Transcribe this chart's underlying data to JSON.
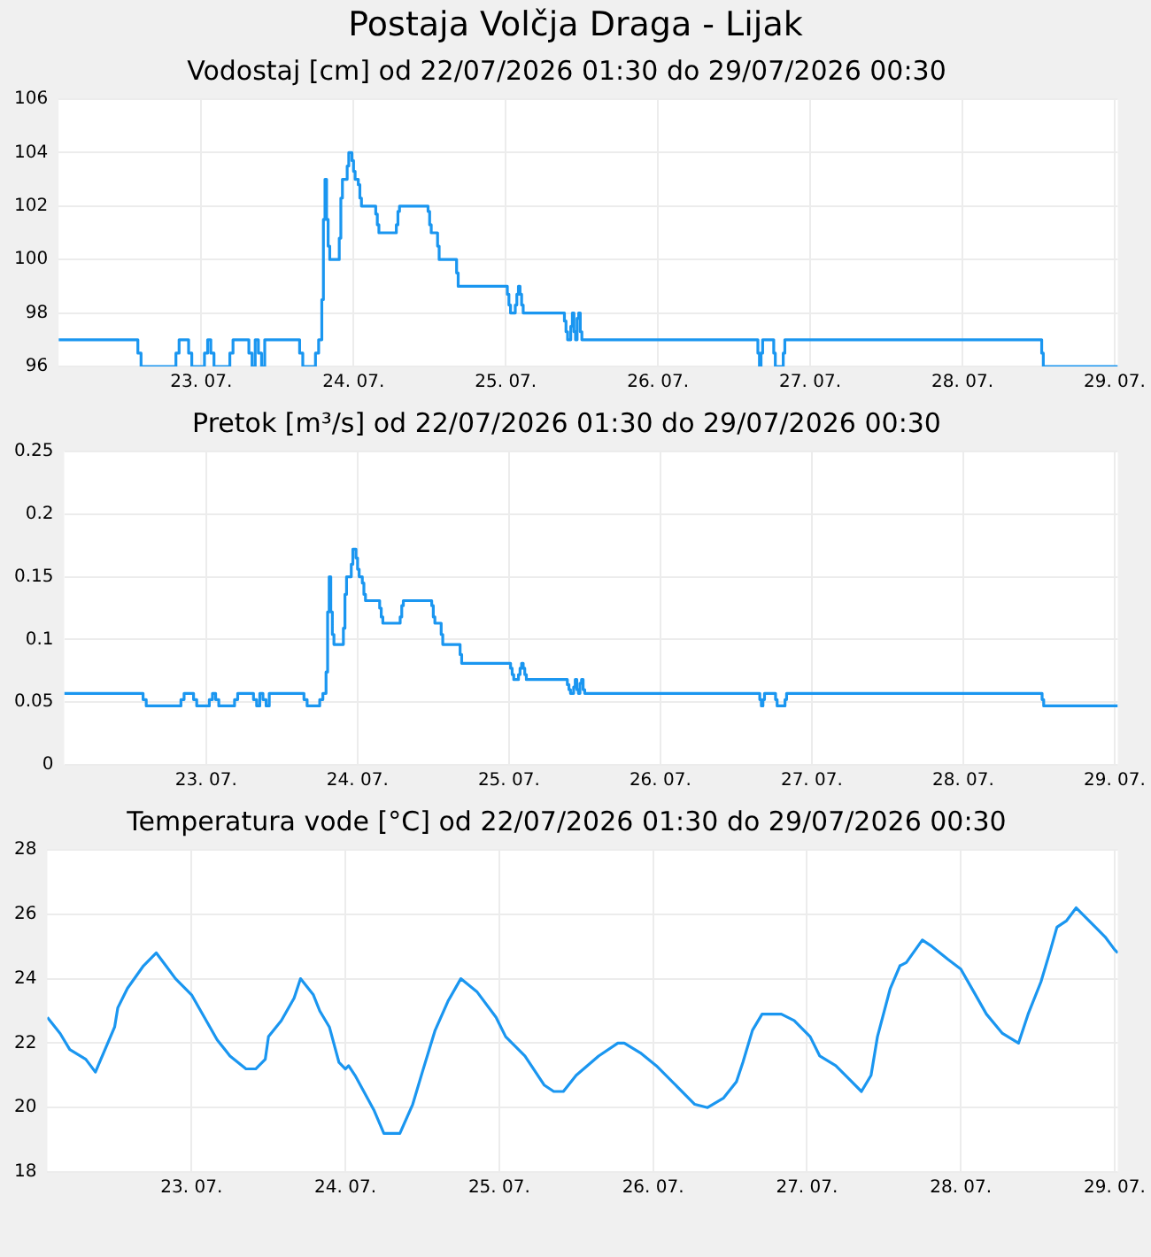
{
  "chart_data": [
    {
      "type": "step",
      "title": "Postaja Volčja Draga - Lijak",
      "subtitle": "Vodostaj [cm] od 22/07/2026 01:30 do 29/07/2026 00:30",
      "color": "#1a96f0",
      "grid": true,
      "x": [
        "2026-07-22T01:30",
        "2026-07-22T14:00",
        "2026-07-22T14:30",
        "2026-07-22T20:00",
        "2026-07-22T20:30",
        "2026-07-22T22:00",
        "2026-07-22T22:30",
        "2026-07-23T00:30",
        "2026-07-23T01:00",
        "2026-07-23T01:30",
        "2026-07-23T02:00",
        "2026-07-23T04:30",
        "2026-07-23T05:00",
        "2026-07-23T07:30",
        "2026-07-23T08:00",
        "2026-07-23T08:30",
        "2026-07-23T09:00",
        "2026-07-23T09:30",
        "2026-07-23T10:00",
        "2026-07-23T15:30",
        "2026-07-23T16:00",
        "2026-07-23T18:00",
        "2026-07-23T18:30",
        "2026-07-23T19:00",
        "2026-07-23T19:15",
        "2026-07-23T19:30",
        "2026-07-23T19:45",
        "2026-07-23T20:00",
        "2026-07-23T20:15",
        "2026-07-23T21:45",
        "2026-07-23T22:00",
        "2026-07-23T22:15",
        "2026-07-23T23:00",
        "2026-07-23T23:15",
        "2026-07-23T23:45",
        "2026-07-24T00:00",
        "2026-07-24T00:15",
        "2026-07-24T00:45",
        "2026-07-24T01:00",
        "2026-07-24T01:15",
        "2026-07-24T03:30",
        "2026-07-24T03:45",
        "2026-07-24T04:00",
        "2026-07-24T06:45",
        "2026-07-24T07:00",
        "2026-07-24T07:15",
        "2026-07-24T11:45",
        "2026-07-24T12:00",
        "2026-07-24T12:15",
        "2026-07-24T13:15",
        "2026-07-24T13:30",
        "2026-07-24T16:15",
        "2026-07-24T16:30",
        "2026-07-25T00:15",
        "2026-07-25T00:30",
        "2026-07-25T00:45",
        "2026-07-25T01:30",
        "2026-07-25T01:45",
        "2026-07-25T02:00",
        "2026-07-25T02:15",
        "2026-07-25T02:30",
        "2026-07-25T02:45",
        "2026-07-25T09:15",
        "2026-07-25T09:30",
        "2026-07-25T09:45",
        "2026-07-25T10:15",
        "2026-07-25T10:30",
        "2026-07-25T10:45",
        "2026-07-25T11:00",
        "2026-07-25T11:15",
        "2026-07-25T11:30",
        "2026-07-25T11:45",
        "2026-07-25T12:00",
        "2026-07-26T15:45",
        "2026-07-26T16:00",
        "2026-07-26T16:15",
        "2026-07-26T16:30",
        "2026-07-26T18:15",
        "2026-07-26T18:30",
        "2026-07-26T19:45",
        "2026-07-26T20:00",
        "2026-07-28T12:30",
        "2026-07-28T12:45",
        "2026-07-29T00:30"
      ],
      "values": [
        97,
        96.5,
        96,
        96.5,
        97,
        96.5,
        96,
        96.5,
        97,
        96.5,
        96,
        96.5,
        97,
        96.5,
        96,
        97,
        96.5,
        96,
        97,
        96.5,
        96,
        96.5,
        97,
        98.5,
        101.5,
        103,
        101.5,
        100.5,
        100,
        100.8,
        102.3,
        103,
        103.5,
        104,
        103.7,
        103.3,
        103,
        102.8,
        102.3,
        102,
        101.7,
        101.3,
        101,
        101.3,
        101.8,
        102,
        101.8,
        101.3,
        101,
        100.5,
        100,
        99.5,
        99,
        98.7,
        98.3,
        98,
        98.3,
        98.7,
        99,
        98.7,
        98.3,
        98,
        97.7,
        97.3,
        97,
        97.5,
        98,
        97.3,
        97,
        97.8,
        98,
        97.3,
        97,
        96.5,
        96,
        96.5,
        97,
        96.5,
        96,
        96.5,
        97,
        96.5,
        96,
        96
      ],
      "xlim": [
        "2026-07-22T01:30",
        "2026-07-29T00:30"
      ],
      "xticks": [
        {
          "value": "2026-07-23",
          "label": "23. 07."
        },
        {
          "value": "2026-07-24",
          "label": "24. 07."
        },
        {
          "value": "2026-07-25",
          "label": "25. 07."
        },
        {
          "value": "2026-07-26",
          "label": "26. 07."
        },
        {
          "value": "2026-07-27",
          "label": "27. 07."
        },
        {
          "value": "2026-07-28",
          "label": "28. 07."
        },
        {
          "value": "2026-07-29",
          "label": "29. 07."
        }
      ],
      "ylim": [
        96,
        106
      ],
      "yticks": [
        96,
        98,
        100,
        102,
        104,
        106
      ]
    },
    {
      "type": "step",
      "title": "Pretok [m³/s] od 22/07/2026 01:30 do 29/07/2026 00:30",
      "color": "#1a96f0",
      "grid": true,
      "x": [
        "2026-07-22T01:30",
        "2026-07-22T14:00",
        "2026-07-22T14:30",
        "2026-07-22T20:00",
        "2026-07-22T20:30",
        "2026-07-22T22:00",
        "2026-07-22T22:30",
        "2026-07-23T00:30",
        "2026-07-23T01:00",
        "2026-07-23T01:30",
        "2026-07-23T02:00",
        "2026-07-23T04:30",
        "2026-07-23T05:00",
        "2026-07-23T07:30",
        "2026-07-23T08:00",
        "2026-07-23T08:30",
        "2026-07-23T09:00",
        "2026-07-23T09:30",
        "2026-07-23T10:00",
        "2026-07-23T15:30",
        "2026-07-23T16:00",
        "2026-07-23T18:00",
        "2026-07-23T18:30",
        "2026-07-23T19:00",
        "2026-07-23T19:15",
        "2026-07-23T19:30",
        "2026-07-23T19:45",
        "2026-07-23T20:00",
        "2026-07-23T20:15",
        "2026-07-23T21:45",
        "2026-07-23T22:00",
        "2026-07-23T22:15",
        "2026-07-23T23:00",
        "2026-07-23T23:15",
        "2026-07-23T23:45",
        "2026-07-24T00:00",
        "2026-07-24T00:15",
        "2026-07-24T00:45",
        "2026-07-24T01:00",
        "2026-07-24T01:15",
        "2026-07-24T03:30",
        "2026-07-24T03:45",
        "2026-07-24T04:00",
        "2026-07-24T06:45",
        "2026-07-24T07:00",
        "2026-07-24T07:15",
        "2026-07-24T11:45",
        "2026-07-24T12:00",
        "2026-07-24T12:15",
        "2026-07-24T13:15",
        "2026-07-24T13:30",
        "2026-07-24T16:15",
        "2026-07-24T16:30",
        "2026-07-25T00:15",
        "2026-07-25T00:30",
        "2026-07-25T00:45",
        "2026-07-25T01:30",
        "2026-07-25T01:45",
        "2026-07-25T02:00",
        "2026-07-25T02:15",
        "2026-07-25T02:30",
        "2026-07-25T02:45",
        "2026-07-25T09:15",
        "2026-07-25T09:30",
        "2026-07-25T09:45",
        "2026-07-25T10:15",
        "2026-07-25T10:30",
        "2026-07-25T10:45",
        "2026-07-25T11:00",
        "2026-07-25T11:15",
        "2026-07-25T11:30",
        "2026-07-25T11:45",
        "2026-07-25T12:00",
        "2026-07-26T15:45",
        "2026-07-26T16:00",
        "2026-07-26T16:15",
        "2026-07-26T16:30",
        "2026-07-26T18:15",
        "2026-07-26T18:30",
        "2026-07-26T19:45",
        "2026-07-26T20:00",
        "2026-07-28T12:30",
        "2026-07-28T12:45",
        "2026-07-29T00:30"
      ],
      "values": [
        0.057,
        0.052,
        0.047,
        0.052,
        0.057,
        0.052,
        0.047,
        0.052,
        0.057,
        0.052,
        0.047,
        0.052,
        0.057,
        0.052,
        0.047,
        0.057,
        0.052,
        0.047,
        0.057,
        0.052,
        0.047,
        0.052,
        0.057,
        0.074,
        0.122,
        0.15,
        0.122,
        0.104,
        0.096,
        0.109,
        0.136,
        0.15,
        0.16,
        0.172,
        0.165,
        0.156,
        0.15,
        0.145,
        0.136,
        0.131,
        0.125,
        0.118,
        0.113,
        0.118,
        0.127,
        0.131,
        0.127,
        0.118,
        0.113,
        0.104,
        0.096,
        0.088,
        0.081,
        0.077,
        0.072,
        0.068,
        0.072,
        0.077,
        0.081,
        0.077,
        0.072,
        0.068,
        0.064,
        0.06,
        0.057,
        0.062,
        0.068,
        0.06,
        0.057,
        0.065,
        0.068,
        0.06,
        0.057,
        0.052,
        0.047,
        0.052,
        0.057,
        0.052,
        0.047,
        0.052,
        0.057,
        0.052,
        0.047,
        0.047
      ],
      "xlim": [
        "2026-07-22T01:30",
        "2026-07-29T00:30"
      ],
      "xticks": [
        {
          "value": "2026-07-23",
          "label": "23. 07."
        },
        {
          "value": "2026-07-24",
          "label": "24. 07."
        },
        {
          "value": "2026-07-25",
          "label": "25. 07."
        },
        {
          "value": "2026-07-26",
          "label": "26. 07."
        },
        {
          "value": "2026-07-27",
          "label": "27. 07."
        },
        {
          "value": "2026-07-28",
          "label": "28. 07."
        },
        {
          "value": "2026-07-29",
          "label": "29. 07."
        }
      ],
      "ylim": [
        0,
        0.25
      ],
      "yticks": [
        0,
        0.05,
        0.1,
        0.15,
        0.2,
        0.25
      ]
    },
    {
      "type": "line",
      "title": "Temperatura vode [°C] od 22/07/2026 01:30 do 29/07/2026 00:30",
      "color": "#1a96f0",
      "grid": true,
      "x": [
        "2026-07-22T01:30",
        "2026-07-22T03:30",
        "2026-07-22T05:00",
        "2026-07-22T07:30",
        "2026-07-22T09:00",
        "2026-07-22T10:30",
        "2026-07-22T12:00",
        "2026-07-22T12:30",
        "2026-07-22T14:00",
        "2026-07-22T16:30",
        "2026-07-22T18:30",
        "2026-07-22T20:00",
        "2026-07-22T21:30",
        "2026-07-23T00:00",
        "2026-07-23T02:00",
        "2026-07-23T04:00",
        "2026-07-23T06:00",
        "2026-07-23T08:30",
        "2026-07-23T10:00",
        "2026-07-23T11:30",
        "2026-07-23T12:00",
        "2026-07-23T14:00",
        "2026-07-23T16:00",
        "2026-07-23T17:00",
        "2026-07-23T19:00",
        "2026-07-23T20:00",
        "2026-07-23T21:30",
        "2026-07-23T23:00",
        "2026-07-24T00:00",
        "2026-07-24T00:30",
        "2026-07-24T01:30",
        "2026-07-24T04:30",
        "2026-07-24T06:00",
        "2026-07-24T08:30",
        "2026-07-24T10:30",
        "2026-07-24T12:00",
        "2026-07-24T14:00",
        "2026-07-24T16:00",
        "2026-07-24T18:00",
        "2026-07-24T20:30",
        "2026-07-24T23:30",
        "2026-07-25T01:00",
        "2026-07-25T04:00",
        "2026-07-25T07:00",
        "2026-07-25T08:30",
        "2026-07-25T10:00",
        "2026-07-25T12:00",
        "2026-07-25T15:30",
        "2026-07-25T18:30",
        "2026-07-25T19:30",
        "2026-07-25T22:00",
        "2026-07-26T00:30",
        "2026-07-26T03:30",
        "2026-07-26T06:30",
        "2026-07-26T08:30",
        "2026-07-26T11:00",
        "2026-07-26T13:00",
        "2026-07-26T14:00",
        "2026-07-26T15:30",
        "2026-07-26T17:00",
        "2026-07-26T20:00",
        "2026-07-26T22:00",
        "2026-07-27T00:30",
        "2026-07-27T02:00",
        "2026-07-27T04:30",
        "2026-07-27T06:30",
        "2026-07-27T08:30",
        "2026-07-27T10:00",
        "2026-07-27T11:00",
        "2026-07-27T13:00",
        "2026-07-27T14:30",
        "2026-07-27T15:30",
        "2026-07-27T18:00",
        "2026-07-27T19:30",
        "2026-07-27T22:00",
        "2026-07-28T00:00",
        "2026-07-28T02:00",
        "2026-07-28T04:00",
        "2026-07-28T06:30",
        "2026-07-28T09:00",
        "2026-07-28T10:30",
        "2026-07-28T12:30",
        "2026-07-28T14:00",
        "2026-07-28T15:00",
        "2026-07-28T16:30",
        "2026-07-28T18:00",
        "2026-07-28T19:00",
        "2026-07-28T21:00",
        "2026-07-28T22:30",
        "2026-07-29T00:00",
        "2026-07-29T00:30"
      ],
      "values": [
        22.8,
        22.3,
        21.8,
        21.5,
        21.1,
        21.8,
        22.5,
        23.1,
        23.7,
        24.4,
        24.8,
        24.4,
        24.0,
        23.5,
        22.8,
        22.1,
        21.6,
        21.2,
        21.2,
        21.5,
        22.2,
        22.7,
        23.4,
        24.0,
        23.5,
        23.0,
        22.5,
        21.4,
        21.2,
        21.3,
        21.0,
        19.9,
        19.2,
        19.2,
        20.1,
        21.1,
        22.4,
        23.3,
        24.0,
        23.6,
        22.8,
        22.2,
        21.6,
        20.7,
        20.5,
        20.5,
        21.0,
        21.6,
        22.0,
        22.0,
        21.7,
        21.3,
        20.7,
        20.1,
        20.0,
        20.3,
        20.8,
        21.4,
        22.4,
        22.9,
        22.9,
        22.7,
        22.2,
        21.6,
        21.3,
        20.9,
        20.5,
        21.0,
        22.2,
        23.7,
        24.4,
        24.5,
        25.2,
        25.0,
        24.6,
        24.3,
        23.6,
        22.9,
        22.3,
        22.0,
        22.9,
        23.9,
        24.9,
        25.6,
        25.8,
        26.2,
        26.0,
        25.6,
        25.3,
        24.9,
        24.8
      ],
      "xlim": [
        "2026-07-22T01:30",
        "2026-07-29T00:30"
      ],
      "xticks": [
        {
          "value": "2026-07-23",
          "label": "23. 07."
        },
        {
          "value": "2026-07-24",
          "label": "24. 07."
        },
        {
          "value": "2026-07-25",
          "label": "25. 07."
        },
        {
          "value": "2026-07-26",
          "label": "26. 07."
        },
        {
          "value": "2026-07-27",
          "label": "27. 07."
        },
        {
          "value": "2026-07-28",
          "label": "28. 07."
        },
        {
          "value": "2026-07-29",
          "label": "29. 07."
        }
      ],
      "ylim": [
        18,
        28
      ],
      "yticks": [
        18,
        20,
        22,
        24,
        26,
        28
      ]
    }
  ]
}
